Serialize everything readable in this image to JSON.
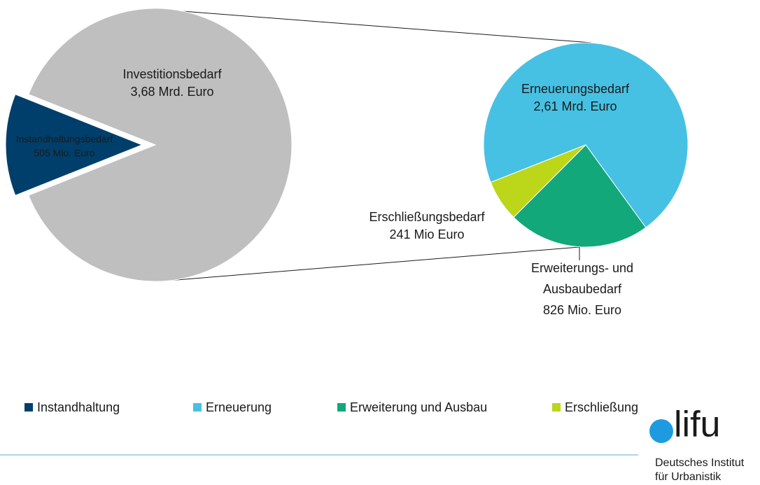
{
  "chart_data": {
    "type": "pie_of_pie",
    "main": {
      "categories": [
        "Instandhaltungsbedarf",
        "Investitionsbedarf"
      ],
      "values": [
        505,
        3680
      ],
      "value_labels": [
        "505 Mio. Euro",
        "3,68 Mrd. Euro"
      ],
      "colors": [
        "#003f6b",
        "#bfbfbf"
      ]
    },
    "secondary": {
      "categories": [
        "Erneuerungsbedarf",
        "Erweiterungs- und Ausbaubedarf",
        "Erschließungsbedarf"
      ],
      "values": [
        2610,
        826,
        241
      ],
      "value_labels": [
        "2,61 Mrd. Euro",
        "826 Mio. Euro",
        "241 Mio Euro"
      ],
      "colors": [
        "#47c1e3",
        "#12a87a",
        "#bcd61a"
      ]
    },
    "legend": [
      {
        "name": "Instandhaltung",
        "color": "#003f6b"
      },
      {
        "name": "Erneuerung",
        "color": "#47c1e3"
      },
      {
        "name": "Erweiterung und Ausbau",
        "color": "#12a87a"
      },
      {
        "name": "Erschließung",
        "color": "#bcd61a"
      }
    ]
  },
  "logo": {
    "mark": "lifu",
    "lines": [
      "Deutsches Institut",
      "für Urbanistik"
    ]
  }
}
